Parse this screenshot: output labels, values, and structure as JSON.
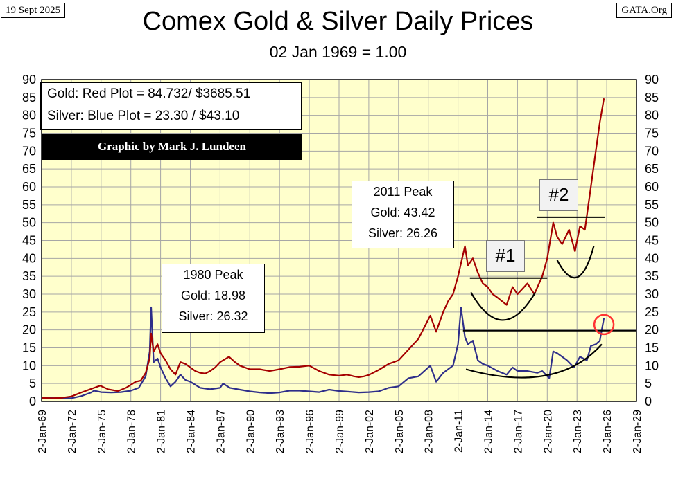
{
  "header": {
    "date": "19 Sept 2025",
    "source": "GATA.Org",
    "title": "Comex Gold & Silver Daily Prices",
    "subtitle": "02 Jan 1969 = 1.00"
  },
  "legend": {
    "gold_line": "Gold: Red Plot =  84.732/ $3685.51",
    "silver_line": "Silver: Blue Plot = 23.30 / $43.10",
    "credit": "Graphic by Mark J. Lundeen"
  },
  "annotations": {
    "peak_1980": {
      "title": "1980 Peak",
      "gold": "Gold:  18.98",
      "silver": "Silver: 26.32"
    },
    "peak_2011": {
      "title": "2011 Peak",
      "gold": "Gold:  43.42",
      "silver": "Silver: 26.26"
    },
    "marker_1": "#1",
    "marker_2": "#2"
  },
  "colors": {
    "plot_bg": "#ffffcc",
    "grid": "#a6a6a6",
    "gold": "#a50000",
    "silver": "#2e2e8a",
    "highlight_circle": "#ff3333"
  },
  "chart_data": {
    "type": "line",
    "x_tick_labels": [
      "2-Jan-69",
      "2-Jan-72",
      "2-Jan-75",
      "2-Jan-78",
      "2-Jan-81",
      "2-Jan-84",
      "2-Jan-87",
      "2-Jan-90",
      "2-Jan-93",
      "2-Jan-96",
      "2-Jan-99",
      "2-Jan-02",
      "2-Jan-05",
      "2-Jan-08",
      "2-Jan-11",
      "2-Jan-14",
      "2-Jan-17",
      "2-Jan-20",
      "2-Jan-23",
      "2-Jan-26",
      "2-Jan-29"
    ],
    "xlim": [
      1969.0,
      2029.0
    ],
    "ylim": [
      0,
      90
    ],
    "y_ticks": [
      0,
      5,
      10,
      15,
      20,
      25,
      30,
      35,
      40,
      45,
      50,
      55,
      60,
      65,
      70,
      75,
      80,
      85,
      90
    ],
    "grid": true,
    "series": [
      {
        "name": "Gold",
        "points": [
          [
            1969.0,
            1.0
          ],
          [
            1970.0,
            0.9
          ],
          [
            1971.0,
            1.0
          ],
          [
            1972.0,
            1.4
          ],
          [
            1973.0,
            2.5
          ],
          [
            1974.0,
            3.5
          ],
          [
            1974.9,
            4.4
          ],
          [
            1975.7,
            3.4
          ],
          [
            1976.7,
            2.9
          ],
          [
            1977.5,
            3.8
          ],
          [
            1978.5,
            5.5
          ],
          [
            1979.0,
            5.8
          ],
          [
            1979.5,
            8.0
          ],
          [
            1979.9,
            12.0
          ],
          [
            1980.05,
            18.98
          ],
          [
            1980.3,
            14.0
          ],
          [
            1980.7,
            16.0
          ],
          [
            1981.0,
            13.5
          ],
          [
            1981.5,
            11.5
          ],
          [
            1982.0,
            9.0
          ],
          [
            1982.5,
            7.5
          ],
          [
            1983.0,
            11.0
          ],
          [
            1983.5,
            10.5
          ],
          [
            1984.0,
            9.5
          ],
          [
            1984.5,
            8.5
          ],
          [
            1985.0,
            8.0
          ],
          [
            1985.5,
            7.8
          ],
          [
            1986.0,
            8.5
          ],
          [
            1986.5,
            9.5
          ],
          [
            1987.0,
            11.0
          ],
          [
            1987.9,
            12.5
          ],
          [
            1988.5,
            11.0
          ],
          [
            1989.0,
            10.0
          ],
          [
            1990.0,
            9.0
          ],
          [
            1991.0,
            9.0
          ],
          [
            1992.0,
            8.5
          ],
          [
            1993.0,
            9.0
          ],
          [
            1994.0,
            9.6
          ],
          [
            1995.0,
            9.7
          ],
          [
            1996.0,
            10.0
          ],
          [
            1997.0,
            8.5
          ],
          [
            1998.0,
            7.5
          ],
          [
            1999.0,
            7.2
          ],
          [
            1999.8,
            7.5
          ],
          [
            2000.5,
            7.0
          ],
          [
            2001.0,
            6.8
          ],
          [
            2001.5,
            7.0
          ],
          [
            2002.0,
            7.4
          ],
          [
            2003.0,
            8.8
          ],
          [
            2004.0,
            10.5
          ],
          [
            2005.0,
            11.5
          ],
          [
            2006.0,
            14.5
          ],
          [
            2007.0,
            17.5
          ],
          [
            2008.2,
            24.0
          ],
          [
            2008.8,
            19.5
          ],
          [
            2009.5,
            25.0
          ],
          [
            2010.0,
            28.0
          ],
          [
            2010.5,
            30.0
          ],
          [
            2011.0,
            35.0
          ],
          [
            2011.7,
            43.42
          ],
          [
            2012.0,
            38.0
          ],
          [
            2012.5,
            40.0
          ],
          [
            2013.0,
            36.0
          ],
          [
            2013.5,
            33.0
          ],
          [
            2014.0,
            32.0
          ],
          [
            2014.5,
            30.0
          ],
          [
            2015.0,
            29.0
          ],
          [
            2015.9,
            27.0
          ],
          [
            2016.5,
            32.0
          ],
          [
            2017.0,
            30.0
          ],
          [
            2018.0,
            33.0
          ],
          [
            2018.7,
            30.0
          ],
          [
            2019.5,
            35.0
          ],
          [
            2020.0,
            40.0
          ],
          [
            2020.6,
            50.0
          ],
          [
            2021.0,
            46.0
          ],
          [
            2021.5,
            44.0
          ],
          [
            2022.2,
            48.0
          ],
          [
            2022.8,
            42.0
          ],
          [
            2023.3,
            49.0
          ],
          [
            2023.8,
            48.0
          ],
          [
            2024.3,
            58.0
          ],
          [
            2024.8,
            68.0
          ],
          [
            2025.3,
            78.0
          ],
          [
            2025.72,
            84.73
          ]
        ]
      },
      {
        "name": "Silver",
        "points": [
          [
            1969.0,
            1.0
          ],
          [
            1970.0,
            0.95
          ],
          [
            1971.0,
            0.9
          ],
          [
            1972.0,
            0.9
          ],
          [
            1973.0,
            1.5
          ],
          [
            1974.0,
            2.5
          ],
          [
            1974.3,
            3.0
          ],
          [
            1975.0,
            2.6
          ],
          [
            1976.0,
            2.5
          ],
          [
            1977.0,
            2.6
          ],
          [
            1978.0,
            3.0
          ],
          [
            1978.8,
            3.8
          ],
          [
            1979.5,
            7.0
          ],
          [
            1979.9,
            14.0
          ],
          [
            1980.05,
            26.32
          ],
          [
            1980.3,
            11.0
          ],
          [
            1980.7,
            12.0
          ],
          [
            1981.0,
            9.5
          ],
          [
            1981.5,
            6.5
          ],
          [
            1982.0,
            4.2
          ],
          [
            1982.5,
            5.5
          ],
          [
            1983.0,
            7.5
          ],
          [
            1983.5,
            6.0
          ],
          [
            1984.0,
            5.5
          ],
          [
            1985.0,
            3.8
          ],
          [
            1986.0,
            3.4
          ],
          [
            1987.0,
            3.8
          ],
          [
            1987.3,
            5.0
          ],
          [
            1988.0,
            3.8
          ],
          [
            1989.0,
            3.3
          ],
          [
            1990.0,
            2.8
          ],
          [
            1991.0,
            2.5
          ],
          [
            1992.0,
            2.3
          ],
          [
            1993.0,
            2.5
          ],
          [
            1994.0,
            3.0
          ],
          [
            1995.0,
            3.0
          ],
          [
            1996.0,
            2.8
          ],
          [
            1997.0,
            2.6
          ],
          [
            1998.0,
            3.3
          ],
          [
            1999.0,
            2.9
          ],
          [
            2000.0,
            2.7
          ],
          [
            2001.0,
            2.5
          ],
          [
            2002.0,
            2.6
          ],
          [
            2003.0,
            2.8
          ],
          [
            2004.0,
            3.8
          ],
          [
            2005.0,
            4.2
          ],
          [
            2006.0,
            6.5
          ],
          [
            2007.0,
            7.0
          ],
          [
            2008.2,
            10.0
          ],
          [
            2008.8,
            5.5
          ],
          [
            2009.5,
            8.0
          ],
          [
            2010.0,
            9.0
          ],
          [
            2010.5,
            10.0
          ],
          [
            2011.0,
            16.0
          ],
          [
            2011.3,
            26.26
          ],
          [
            2011.7,
            18.0
          ],
          [
            2012.0,
            16.0
          ],
          [
            2012.5,
            17.0
          ],
          [
            2013.0,
            11.5
          ],
          [
            2013.5,
            10.5
          ],
          [
            2014.0,
            10.0
          ],
          [
            2015.0,
            8.5
          ],
          [
            2015.9,
            7.5
          ],
          [
            2016.5,
            9.5
          ],
          [
            2017.0,
            8.5
          ],
          [
            2018.0,
            8.5
          ],
          [
            2019.0,
            8.0
          ],
          [
            2019.5,
            8.5
          ],
          [
            2020.2,
            6.5
          ],
          [
            2020.6,
            14.0
          ],
          [
            2021.0,
            13.5
          ],
          [
            2021.5,
            12.5
          ],
          [
            2022.0,
            11.5
          ],
          [
            2022.7,
            9.5
          ],
          [
            2023.3,
            12.5
          ],
          [
            2024.0,
            11.5
          ],
          [
            2024.4,
            15.5
          ],
          [
            2024.9,
            16.0
          ],
          [
            2025.3,
            17.0
          ],
          [
            2025.72,
            23.3
          ]
        ]
      }
    ],
    "shapes": {
      "hline_2_y": 51.5,
      "hline_1_y": 34.5,
      "hline_silver_y": 19.8,
      "highlight_point": [
        2025.72,
        21.5
      ]
    }
  }
}
